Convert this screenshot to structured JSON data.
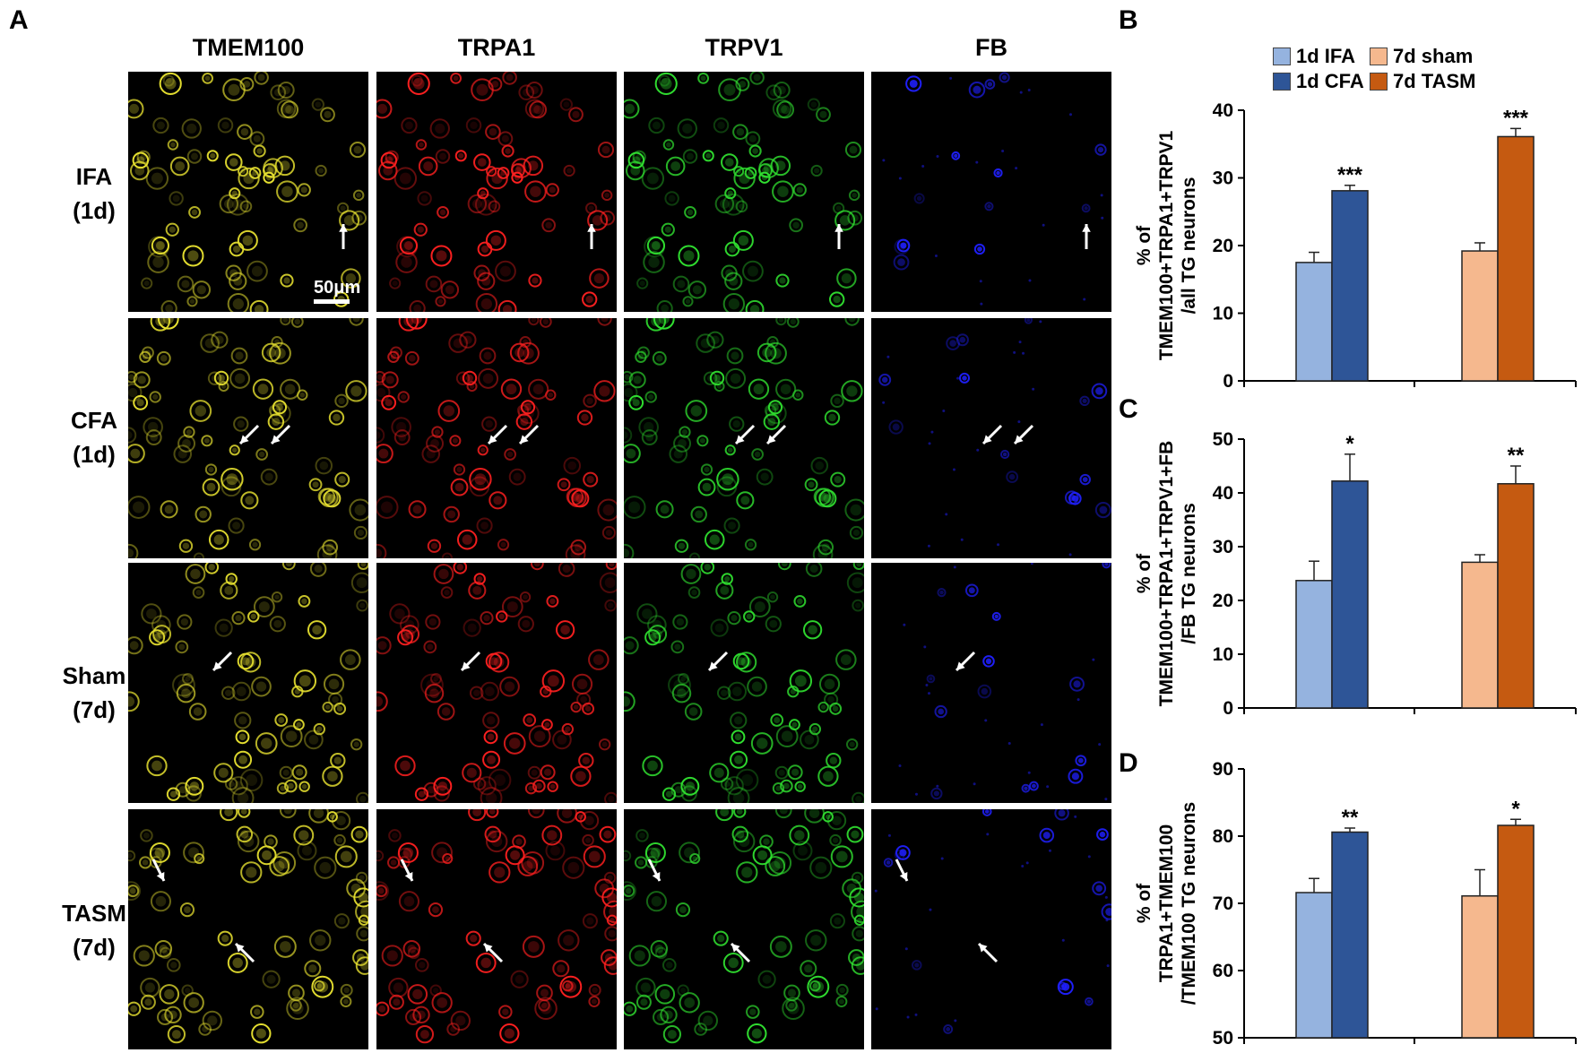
{
  "panels": {
    "A": "A",
    "B": "B",
    "C": "C",
    "D": "D"
  },
  "micrograph": {
    "columns": [
      "TMEM100",
      "TRPA1",
      "TRPV1",
      "FB"
    ],
    "rows": [
      {
        "line1": "IFA",
        "line2": "(1d)"
      },
      {
        "line1": "CFA",
        "line2": "(1d)"
      },
      {
        "line1": "Sham",
        "line2": "(7d)"
      },
      {
        "line1": "TASM",
        "line2": "(7d)"
      }
    ],
    "scale_bar": "50μm",
    "channel_colors": {
      "TMEM100": "#e6e030",
      "TRPA1": "#ff2020",
      "TRPV1": "#30e030",
      "FB": "#2020ff"
    }
  },
  "legend": {
    "items": [
      {
        "label": "1d IFA",
        "color": "#95b3df"
      },
      {
        "label": "7d sham",
        "color": "#f5b88e"
      },
      {
        "label": "1d CFA",
        "color": "#2e5597"
      },
      {
        "label": "7d TASM",
        "color": "#c55a11"
      }
    ]
  },
  "chart_data": [
    {
      "type": "bar",
      "panel": "B",
      "ylabel_lines": [
        "% of",
        "TMEM100+TRPA1+TRPV1",
        "/all TG neurons"
      ],
      "ylim": [
        0,
        40
      ],
      "yticks": [
        0,
        10,
        20,
        30,
        40
      ],
      "groups": [
        {
          "bars": [
            {
              "series": "1d IFA",
              "value": 17.5,
              "err": 1.5,
              "sig": ""
            },
            {
              "series": "1d CFA",
              "value": 28.1,
              "err": 0.8,
              "sig": "***"
            }
          ]
        },
        {
          "bars": [
            {
              "series": "7d sham",
              "value": 19.2,
              "err": 1.2,
              "sig": ""
            },
            {
              "series": "7d TASM",
              "value": 36.1,
              "err": 1.2,
              "sig": "***"
            }
          ]
        }
      ]
    },
    {
      "type": "bar",
      "panel": "C",
      "ylabel_lines": [
        "% of",
        "TMEM100+TRPA1+TRPV1+FB",
        "/FB TG neurons"
      ],
      "ylim": [
        0,
        50
      ],
      "yticks": [
        0,
        10,
        20,
        30,
        40,
        50
      ],
      "groups": [
        {
          "bars": [
            {
              "series": "1d IFA",
              "value": 23.7,
              "err": 3.6,
              "sig": ""
            },
            {
              "series": "1d CFA",
              "value": 42.2,
              "err": 5.0,
              "sig": "*"
            }
          ]
        },
        {
          "bars": [
            {
              "series": "7d sham",
              "value": 27.1,
              "err": 1.4,
              "sig": ""
            },
            {
              "series": "7d TASM",
              "value": 41.7,
              "err": 3.3,
              "sig": "**"
            }
          ]
        }
      ]
    },
    {
      "type": "bar",
      "panel": "D",
      "ylabel_lines": [
        "% of",
        "TRPA1+TMEM100",
        "/TMEM100 TG neurons"
      ],
      "ylim": [
        50,
        90
      ],
      "yticks": [
        50,
        60,
        70,
        80,
        90
      ],
      "groups": [
        {
          "bars": [
            {
              "series": "1d IFA",
              "value": 71.6,
              "err": 2.1,
              "sig": ""
            },
            {
              "series": "1d CFA",
              "value": 80.6,
              "err": 0.6,
              "sig": "**"
            }
          ]
        },
        {
          "bars": [
            {
              "series": "7d sham",
              "value": 71.1,
              "err": 3.9,
              "sig": ""
            },
            {
              "series": "7d TASM",
              "value": 81.6,
              "err": 0.9,
              "sig": "*"
            }
          ]
        }
      ]
    }
  ]
}
